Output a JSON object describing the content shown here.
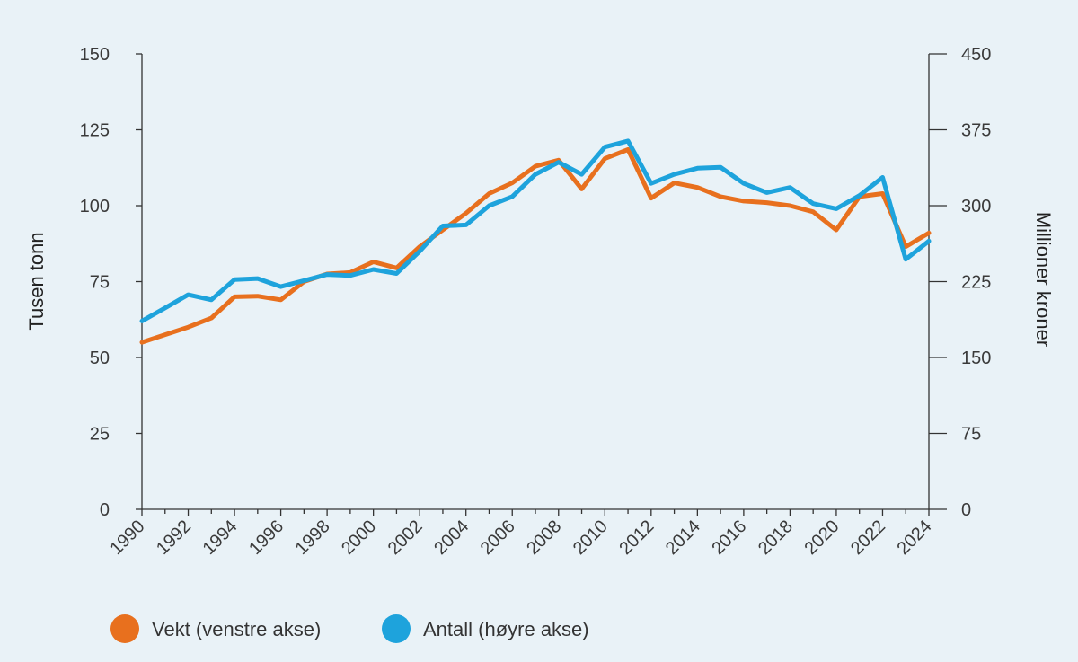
{
  "chart_data": {
    "type": "line",
    "x": [
      1990,
      1991,
      1992,
      1993,
      1994,
      1995,
      1996,
      1997,
      1998,
      1999,
      2000,
      2001,
      2002,
      2003,
      2004,
      2005,
      2006,
      2007,
      2008,
      2009,
      2010,
      2011,
      2012,
      2013,
      2014,
      2015,
      2016,
      2017,
      2018,
      2019,
      2020,
      2021,
      2022,
      2023,
      2024
    ],
    "x_tick_labels": [
      "1990",
      "1992",
      "1994",
      "1996",
      "1998",
      "2000",
      "2002",
      "2004",
      "2006",
      "2008",
      "2010",
      "2012",
      "2014",
      "2016",
      "2018",
      "2020",
      "2022",
      "2024"
    ],
    "ylabel_left": "Tusen tonn",
    "ylabel_right": "Millioner kroner",
    "ylim_left": [
      0,
      150
    ],
    "ylim_right": [
      0,
      450
    ],
    "yticks_left": [
      "0",
      "25",
      "50",
      "75",
      "100",
      "125",
      "150"
    ],
    "yticks_right": [
      "0",
      "75",
      "150",
      "225",
      "300",
      "375",
      "450"
    ],
    "grid": false,
    "legend_position": "bottom-left",
    "series": [
      {
        "name": "Vekt (venstre akse)",
        "axis": "left",
        "color": "#e8701e",
        "values": [
          55,
          57.5,
          60,
          63,
          70,
          70.2,
          69,
          75,
          77.5,
          78,
          81.5,
          79.5,
          86.5,
          92,
          97.5,
          104,
          107.5,
          113,
          115,
          105.5,
          115.5,
          118.5,
          102.5,
          107.5,
          106,
          103,
          101.5,
          101,
          100,
          98,
          92,
          103,
          104,
          86.5,
          91
        ]
      },
      {
        "name": "Antall (høyre akse)",
        "axis": "right",
        "color": "#1ea3dc",
        "values": [
          186,
          199,
          212,
          207,
          227,
          228,
          220,
          226,
          232,
          231,
          237,
          233,
          255,
          280,
          281,
          300,
          309,
          331,
          343,
          331,
          358,
          364,
          322,
          331,
          337,
          338,
          322,
          313,
          318,
          302,
          297,
          310,
          328,
          247,
          265
        ]
      }
    ]
  }
}
